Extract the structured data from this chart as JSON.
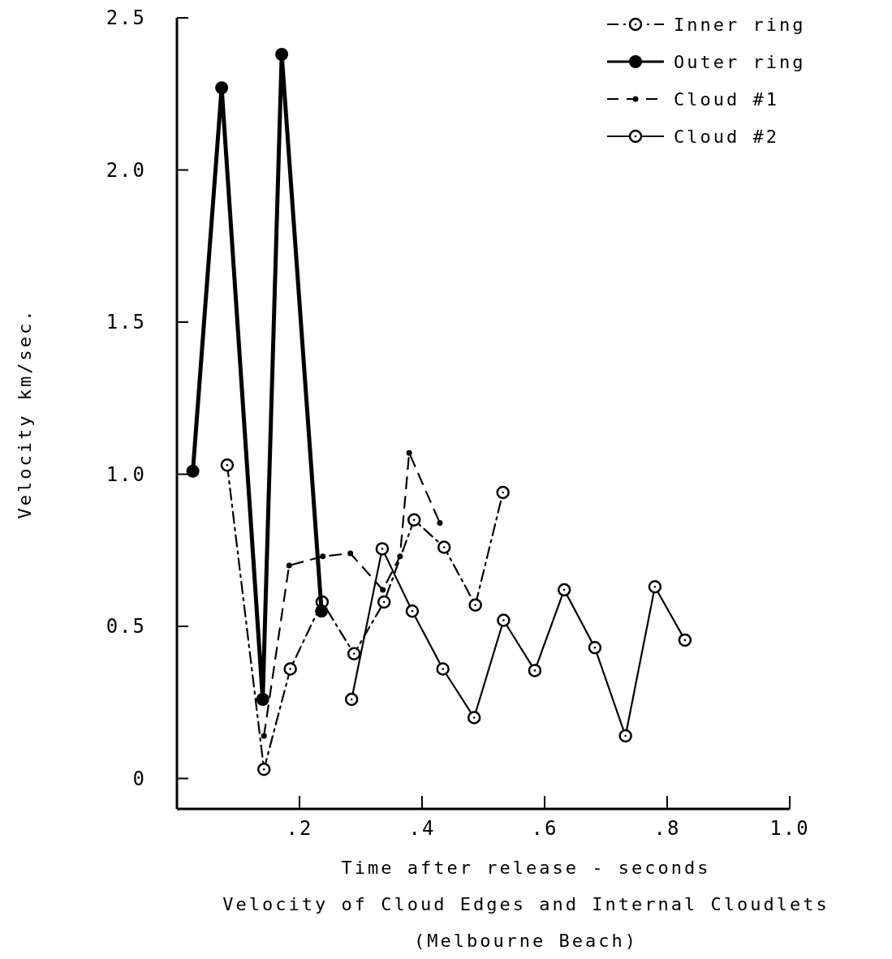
{
  "chart_data": {
    "type": "line",
    "title": "Velocity of Cloud Edges and Internal Cloudlets",
    "subtitle": "(Melbourne Beach)",
    "xlabel": "Time after release - seconds",
    "ylabel": "Velocity km/sec.",
    "xlim": [
      0,
      1
    ],
    "xticks": [
      {
        "value": 0.2,
        "label": ".2"
      },
      {
        "value": 0.4,
        "label": ".4"
      },
      {
        "value": 0.6,
        "label": ".6"
      },
      {
        "value": 0.8,
        "label": ".8"
      },
      {
        "value": 1,
        "label": "1.0"
      }
    ],
    "ylim": [
      -0.1,
      2.5
    ],
    "yticks": [
      0,
      {
        "value": 0.5,
        "label": "0.5"
      },
      {
        "value": 1,
        "label": "1.0"
      },
      {
        "value": 1.5,
        "label": "1.5"
      },
      {
        "value": 2,
        "label": "2.0"
      },
      {
        "value": 2.5,
        "label": "2.5"
      }
    ],
    "grid": false,
    "legend": "top right",
    "series": [
      {
        "name": "Inner ring",
        "color": "#000000",
        "line_style": "dashdot",
        "marker": "circle",
        "x": [
          0.082,
          0.142,
          0.185,
          0.237,
          0.289,
          0.338,
          0.387,
          0.436,
          0.487,
          0.532
        ],
        "values": [
          1.03,
          0.03,
          0.36,
          0.58,
          0.41,
          0.58,
          0.85,
          0.76,
          0.57,
          0.94
        ]
      },
      {
        "name": "Outer ring",
        "color": "#000000",
        "line_style": "solid",
        "marker": "circle",
        "x": [
          0.026,
          0.073,
          0.14,
          0.171,
          0.236
        ],
        "values": [
          1.01,
          2.27,
          0.26,
          2.38,
          0.55
        ]
      },
      {
        "name": "Cloud #1",
        "color": "#000000",
        "line_style": "dashed",
        "marker": "circle",
        "x": [
          0.142,
          0.183,
          0.238,
          0.283,
          0.336,
          0.364,
          0.379,
          0.429
        ],
        "values": [
          0.14,
          0.7,
          0.73,
          0.74,
          0.62,
          0.73,
          1.07,
          0.84
        ]
      },
      {
        "name": "Cloud #2",
        "color": "#000000",
        "line_style": "solid",
        "marker": "circle",
        "x": [
          0.285,
          0.335,
          0.384,
          0.434,
          0.485,
          0.533,
          0.584,
          0.632,
          0.682,
          0.732,
          0.78,
          0.829
        ],
        "values": [
          0.26,
          0.755,
          0.55,
          0.36,
          0.2,
          0.52,
          0.355,
          0.62,
          0.43,
          0.14,
          0.63,
          0.455
        ]
      }
    ]
  }
}
